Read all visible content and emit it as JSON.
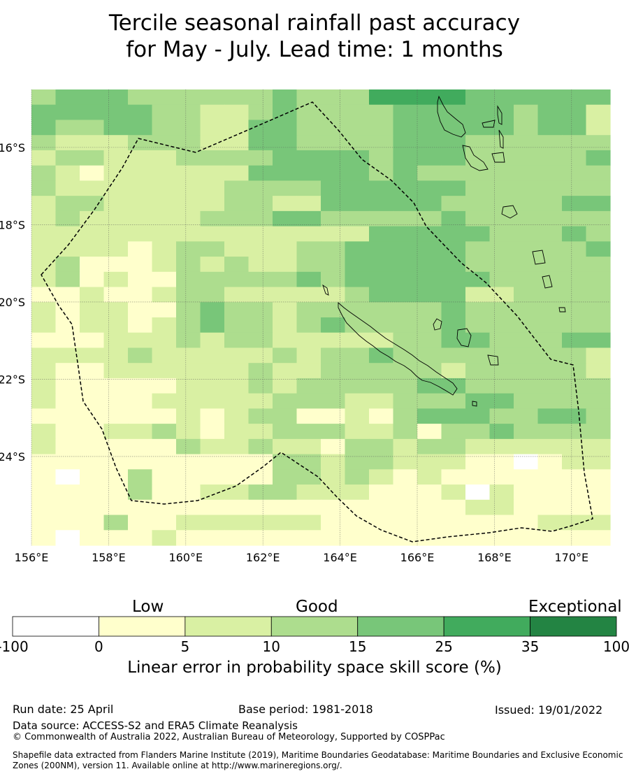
{
  "title": {
    "line1": "Tercile seasonal rainfall past accuracy",
    "line2": "for May - July. Lead time: 1 months"
  },
  "map": {
    "lon_range": [
      156,
      171
    ],
    "lat_range": [
      -14.5,
      -26.3
    ],
    "x_ticks": [
      "156°E",
      "158°E",
      "160°E",
      "162°E",
      "164°E",
      "166°E",
      "168°E",
      "170°E"
    ],
    "y_ticks": [
      "16°S",
      "18°S",
      "20°S",
      "22°S",
      "24°S"
    ],
    "grid_lines": true,
    "boundary": "dashed EEZ outline (New Caledonia)",
    "coastlines": [
      "New Caledonia",
      "Vanuatu",
      "Loyalty Islands"
    ],
    "levels": [
      0,
      1,
      2,
      3,
      4,
      5,
      6
    ],
    "level_grid": [
      "344433333343335555444444",
      "444443322343333444443442",
      "433443322443333444443442",
      "322233322443333444333333",
      "233222333344443444333334",
      "321222222444443433333333",
      "322222223333444444333333",
      "233222223322444443333344",
      "232222233344333334333333",
      "222222222222224444433343",
      "222212332223344444333334",
      "231112323223344444333333",
      "231211333334344444433333",
      "112112332222234444223333",
      "212211343323333334333333",
      "212212343323433334333333",
      "111222323322222334433344",
      "222232222232334333333332",
      "211222222322333332333332",
      "211111222323333344333333",
      "211112222233322333443333",
      "111111212331121344433443",
      "211223212233322313343333",
      "211111322322133233222222",
      "111111111133233222110122",
      "101131111133232121111111",
      "111131122332221112021111",
      "111111111111111111221111",
      "111311222222111111111222",
      "101112111111111111111111"
    ]
  },
  "colorbar": {
    "category_labels": [
      "Low",
      "Good",
      "Exceptional"
    ],
    "tick_labels": [
      "-100",
      "0",
      "5",
      "10",
      "15",
      "25",
      "35",
      "100"
    ],
    "colors": [
      "#ffffff",
      "#ffffcc",
      "#d9f0a3",
      "#addd8e",
      "#78c679",
      "#41ab5d",
      "#238443"
    ],
    "title": "Linear error in probability space skill score (%)"
  },
  "footer": {
    "run_date": "Run date: 25 April",
    "base_period": "Base period: 1981-2018",
    "issued": "Issued: 19/01/2022",
    "data_source": "Data source: ACCESS-S2 and ERA5 Climate Reanalysis",
    "copyright": "© Commonwealth of Australia 2022, Australian Bureau of Meteorology, Supported by COSPPac",
    "shapefile": "Shapefile data extracted from Flanders Marine Institute (2019), Maritime Boundaries Geodatabase: Maritime Boundaries and Exclusive Economic Zones (200NM), version 11. Available online at http://www.marineregions.org/."
  }
}
